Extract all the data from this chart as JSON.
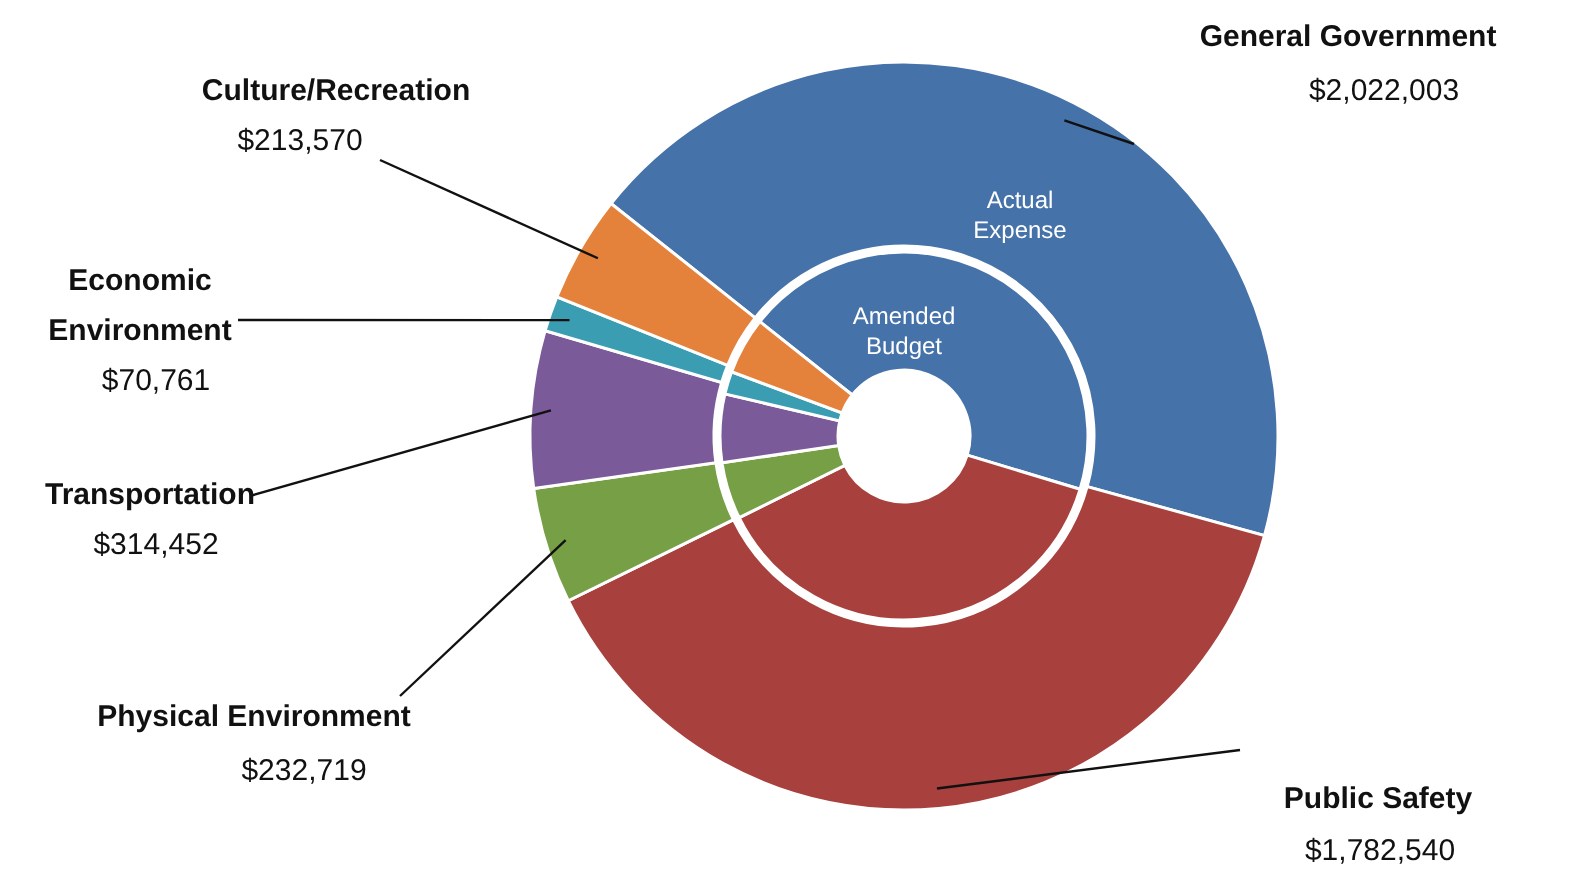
{
  "chart_data": {
    "type": "donut",
    "categories": [
      "General Government",
      "Public Safety",
      "Physical Environment",
      "Transportation",
      "Economic Environment",
      "Culture/Recreation"
    ],
    "colors": [
      "#4672aa",
      "#a8403e",
      "#77a046",
      "#7b5a9a",
      "#3b9db2",
      "#e4813a"
    ],
    "series": [
      {
        "name": "Actual Expense",
        "values": [
          2022003,
          1782540,
          232719,
          314452,
          70761,
          213570
        ],
        "value_labels": [
          "$2,022,003",
          "$1,782,540",
          "$232,719",
          "$314,452",
          "$70,761",
          "$213,570"
        ]
      },
      {
        "name": "Amended Budget",
        "values": [
          44,
          38,
          5,
          6,
          2,
          5
        ]
      }
    ]
  }
}
